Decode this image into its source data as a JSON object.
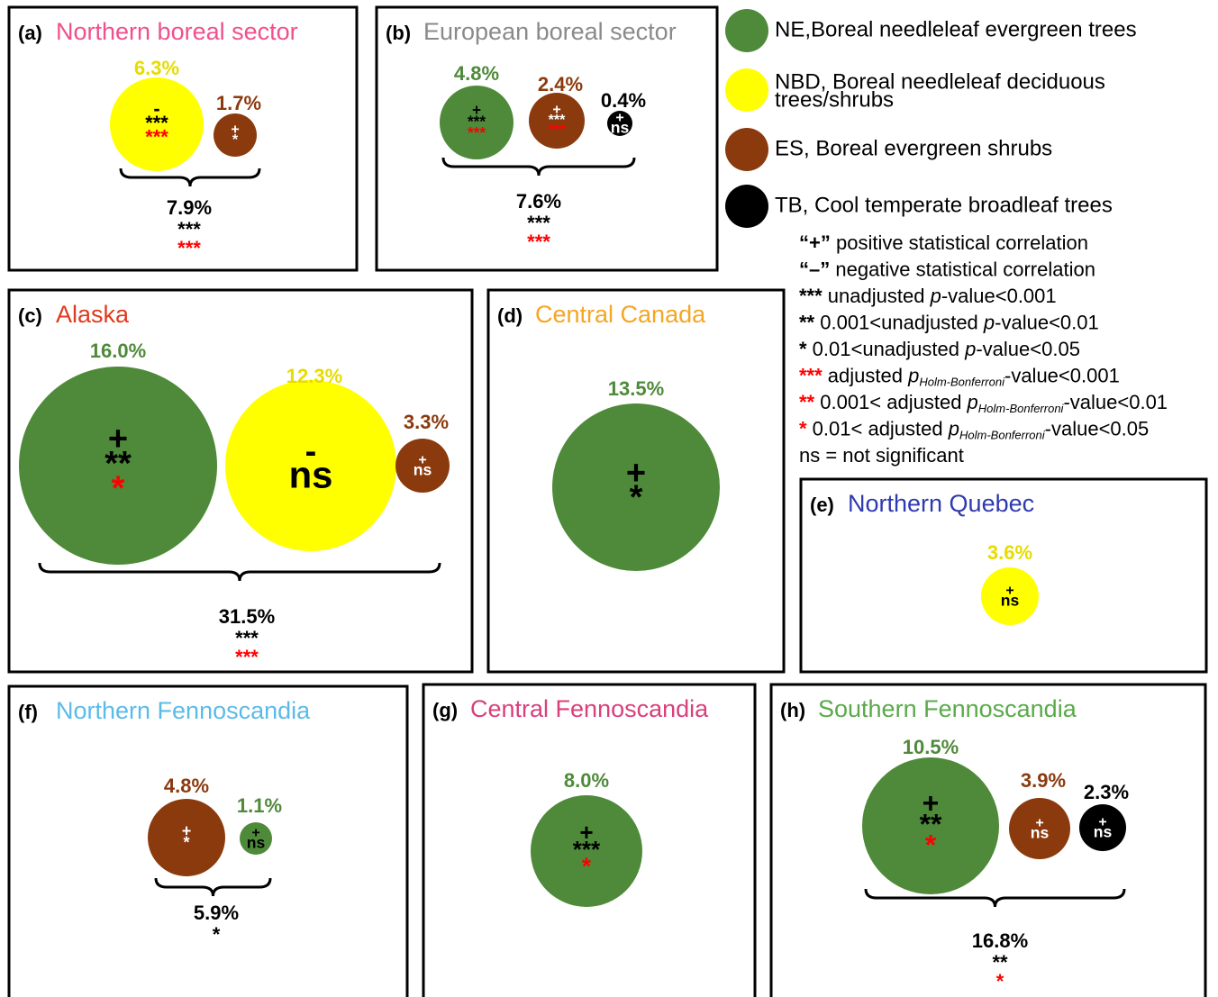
{
  "legend": {
    "items": [
      {
        "color": "#4e8a3a",
        "lines": [
          "NE,Boreal needleleaf evergreen trees"
        ]
      },
      {
        "color": "#ffff00",
        "lines": [
          "NBD,  Boreal needleleaf deciduous",
          "trees/shrubs"
        ]
      },
      {
        "color": "#8b3a0e",
        "lines": [
          "ES, Boreal evergreen shrubs"
        ]
      },
      {
        "color": "#000000",
        "lines": [
          "TB, Cool temperate broadleaf trees"
        ]
      }
    ],
    "notes": [
      {
        "mark": "“+”",
        "text": " positive statistical correlation",
        "mark_color": "#000000"
      },
      {
        "mark": "“–”",
        "text": " negative statistical correlation",
        "mark_color": "#000000"
      },
      {
        "mark": "***",
        "before": " unadjusted ",
        "p": "p",
        "after": "-value<0.001",
        "mark_color": "#000000"
      },
      {
        "mark": "**",
        "before": " 0.001<unadjusted ",
        "p": "p",
        "after": "-value<0.01",
        "mark_color": "#000000"
      },
      {
        "mark": "*",
        "before": " 0.01<unadjusted ",
        "p": "p",
        "after": "-value<0.05",
        "mark_color": "#000000"
      },
      {
        "mark": "***",
        "before": " adjusted ",
        "p": "p",
        "sub": "Holm-Bonferroni",
        "after": "-value<0.001",
        "mark_color": "#ff0000"
      },
      {
        "mark": "**",
        "before": " 0.001< adjusted ",
        "p": "p",
        "sub": "Holm-Bonferroni",
        "after": "-value<0.01",
        "mark_color": "#ff0000"
      },
      {
        "mark": "*",
        "before": " 0.01< adjusted ",
        "p": "p",
        "sub": "Holm-Bonferroni",
        "after": "-value<0.05",
        "mark_color": "#ff0000"
      },
      {
        "text": "ns = not significant",
        "mark_color": "#000000"
      }
    ]
  },
  "panels": [
    {
      "letter": "(a)",
      "title": "Northern boreal sector",
      "title_color": "#f0508c",
      "circles": [
        {
          "color": "#ffff00",
          "percent": "6.3%",
          "sign": "-",
          "stars": "***",
          "adjusted_stars": "***"
        },
        {
          "color": "#8b3a0e",
          "percent": "1.7%",
          "sign": "+",
          "stars": "*"
        }
      ],
      "total": {
        "percent": "7.9%",
        "stars": "***",
        "adjusted_stars": "***"
      }
    },
    {
      "letter": "(b)",
      "title": "European boreal sector",
      "title_color": "#8a8a8a",
      "circles": [
        {
          "color": "#4e8a3a",
          "percent": "4.8%",
          "sign": "+",
          "stars": "***",
          "adjusted_stars": "***"
        },
        {
          "color": "#8b3a0e",
          "percent": "2.4%",
          "sign": "+",
          "stars": "***",
          "adjusted_stars": "***"
        },
        {
          "color": "#000000",
          "percent": "0.4%",
          "sign": "+",
          "stars": "ns"
        }
      ],
      "total": {
        "percent": "7.6%",
        "stars": "***",
        "adjusted_stars": "***"
      }
    },
    {
      "letter": "(c)",
      "title": "Alaska",
      "title_color": "#e03a1e",
      "circles": [
        {
          "color": "#4e8a3a",
          "percent": "16.0%",
          "sign": "+",
          "stars": "**",
          "adjusted_stars": "*"
        },
        {
          "color": "#ffff00",
          "percent": "12.3%",
          "sign": "-",
          "stars": "ns"
        },
        {
          "color": "#8b3a0e",
          "percent": "3.3%",
          "sign": "+",
          "stars": "ns"
        }
      ],
      "total": {
        "percent": "31.5%",
        "stars": "***",
        "adjusted_stars": "***"
      }
    },
    {
      "letter": "(d)",
      "title": "Central Canada",
      "title_color": "#f5a623",
      "circles": [
        {
          "color": "#4e8a3a",
          "percent": "13.5%",
          "sign": "+",
          "stars": "*"
        }
      ]
    },
    {
      "letter": "(e)",
      "title": "Northern Quebec",
      "title_color": "#2f3ab0",
      "circles": [
        {
          "color": "#ffff00",
          "percent": "3.6%",
          "sign": "+",
          "stars": "ns"
        }
      ]
    },
    {
      "letter": "(f)",
      "title": "Northern Fennoscandia",
      "title_color": "#5bbbe8",
      "circles": [
        {
          "color": "#8b3a0e",
          "percent": "4.8%",
          "sign": "+",
          "stars": "*"
        },
        {
          "color": "#4e8a3a",
          "percent": "1.1%",
          "sign": "+",
          "stars": "ns"
        }
      ],
      "total": {
        "percent": "5.9%",
        "stars": "*"
      }
    },
    {
      "letter": "(g)",
      "title": "Central Fennoscandia",
      "title_color": "#d8407a",
      "circles": [
        {
          "color": "#4e8a3a",
          "percent": "8.0%",
          "sign": "+",
          "stars": "***",
          "adjusted_stars": "*"
        }
      ]
    },
    {
      "letter": "(h)",
      "title": "Southern Fennoscandia",
      "title_color": "#5aaa4a",
      "circles": [
        {
          "color": "#4e8a3a",
          "percent": "10.5%",
          "sign": "+",
          "stars": "**",
          "adjusted_stars": "*"
        },
        {
          "color": "#8b3a0e",
          "percent": "3.9%",
          "sign": "+",
          "stars": "ns"
        },
        {
          "color": "#000000",
          "percent": "2.3%",
          "sign": "+",
          "stars": "ns"
        }
      ],
      "total": {
        "percent": "16.8%",
        "stars": "**",
        "adjusted_stars": "*"
      }
    }
  ]
}
